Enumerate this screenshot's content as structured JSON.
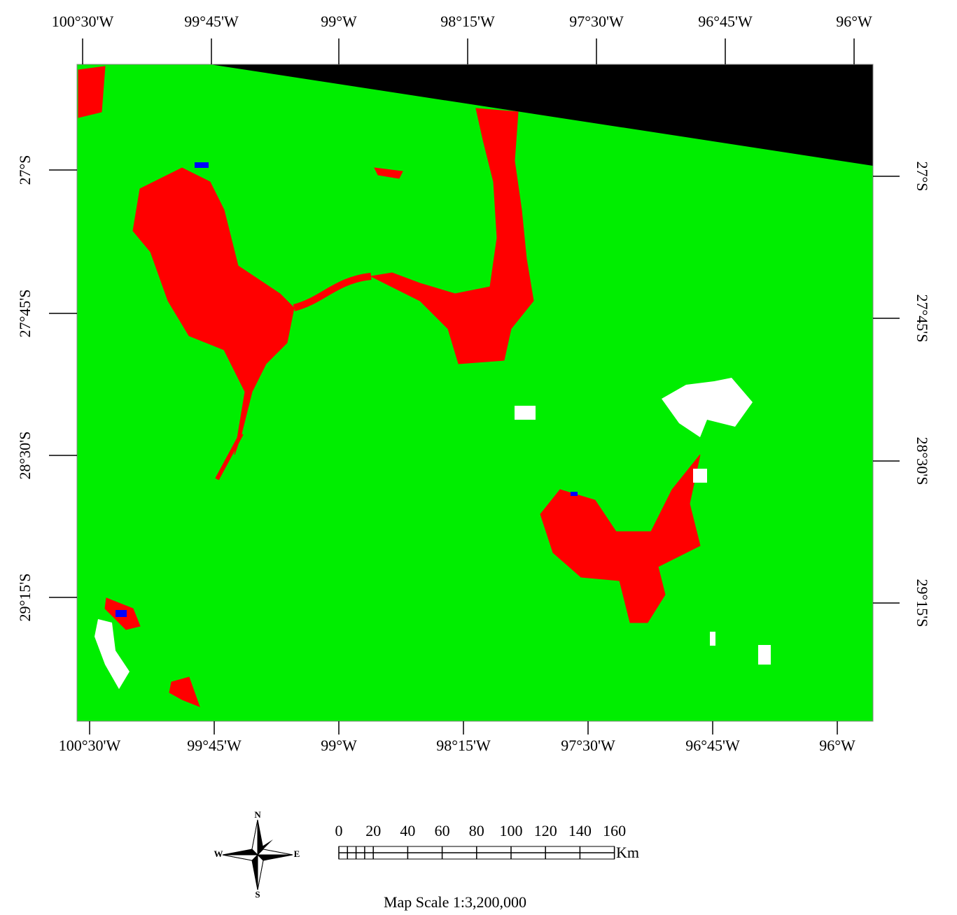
{
  "map": {
    "top_labels": [
      "100°30'W",
      "99°45'W",
      "99°W",
      "98°15'W",
      "97°30'W",
      "96°45'W",
      "96°W"
    ],
    "bottom_labels": [
      "100°30'W",
      "99°45'W",
      "99°W",
      "98°15'W",
      "97°30'W",
      "96°45'W",
      "96°W"
    ],
    "left_labels": [
      "27°S",
      "27°45'S",
      "28°30'S",
      "29°15'S"
    ],
    "right_labels": [
      "27°S",
      "27°45'S",
      "28°30'S",
      "29°15'S"
    ],
    "compass": {
      "north": "N",
      "south": "S",
      "east": "E",
      "west": "W"
    },
    "scale_bar": {
      "labels": [
        "0",
        "20",
        "40",
        "60",
        "80",
        "100",
        "120",
        "140",
        "160"
      ],
      "unit": "Km"
    },
    "map_scale": "Map Scale 1:3,200,000"
  }
}
